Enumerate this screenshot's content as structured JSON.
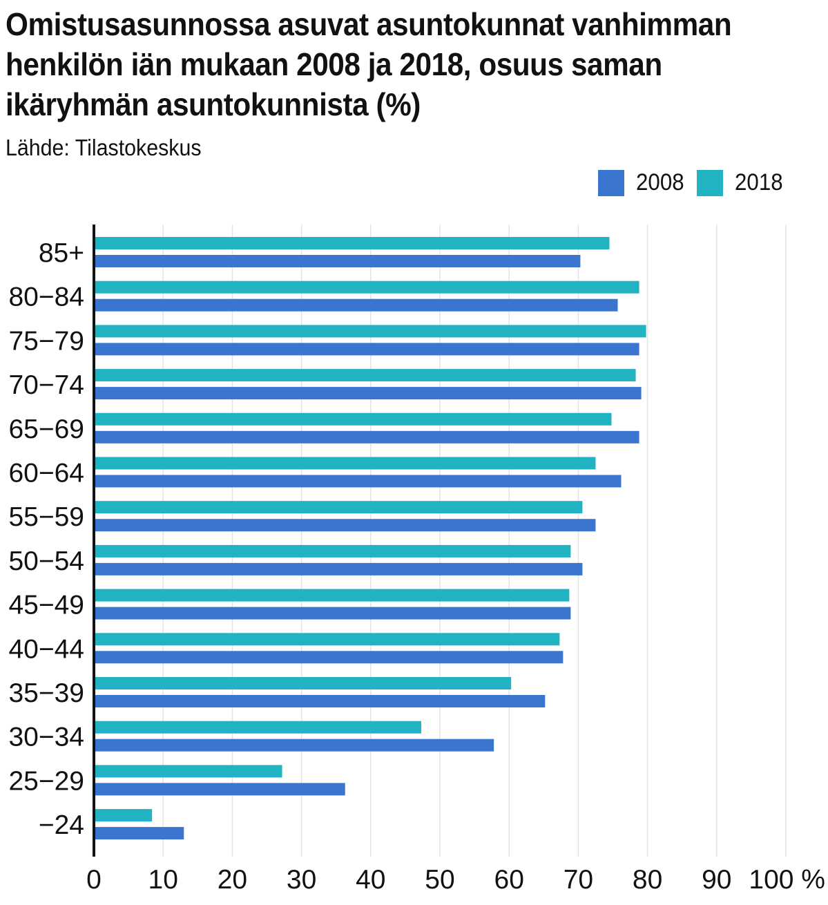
{
  "title": "Omistusasunnossa asuvat asuntokunnat vanhimman henkilön iän mukaan 2008 ja 2018, osuus saman ikäryhmän asuntokunnista (%)",
  "source": "Lähde: Tilastokeskus",
  "colors": {
    "series_2008": "#3a76cf",
    "series_2018": "#22b3c3",
    "grid": "#e3e3e3",
    "axis": "#111111"
  },
  "chart_data": {
    "type": "bar",
    "orientation": "horizontal",
    "title": "Omistusasunnossa asuvat asuntokunnat vanhimman henkilön iän mukaan 2008 ja 2018, osuus saman ikäryhmän asuntokunnista (%)",
    "xlabel": "",
    "ylabel": "",
    "categories": [
      "85+",
      "80−84",
      "75−79",
      "70−74",
      "65−69",
      "60−64",
      "55−59",
      "50−54",
      "45−49",
      "40−44",
      "35−39",
      "30−34",
      "25−29",
      "−24"
    ],
    "series": [
      {
        "name": "2018",
        "values": [
          74.5,
          78.8,
          79.8,
          78.3,
          74.8,
          72.5,
          70.6,
          68.9,
          68.7,
          67.3,
          60.3,
          47.3,
          27.2,
          8.4
        ]
      },
      {
        "name": "2008",
        "values": [
          70.3,
          75.7,
          78.8,
          79.1,
          78.8,
          76.2,
          72.5,
          70.6,
          68.9,
          67.8,
          65.2,
          57.8,
          36.3,
          13.0
        ]
      }
    ],
    "xlim": [
      0,
      100
    ],
    "xticks": [
      "0",
      "10",
      "20",
      "30",
      "40",
      "50",
      "60",
      "70",
      "80",
      "90",
      "100 %"
    ],
    "grid": true,
    "legend_position": "top-right"
  }
}
